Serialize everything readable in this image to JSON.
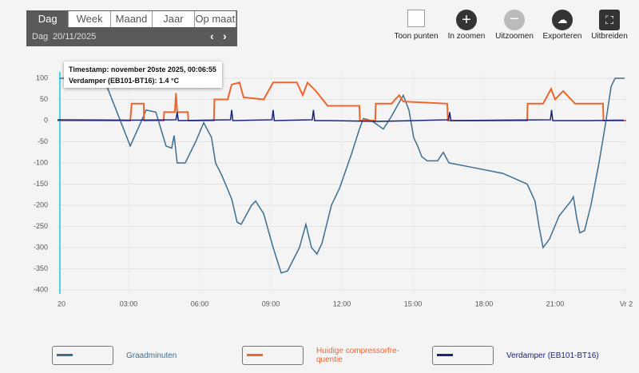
{
  "toolbar": {
    "tabs": [
      "Dag",
      "Week",
      "Maand",
      "Jaar",
      "Op maat"
    ],
    "period": "Dag",
    "date": "20/11/2025"
  },
  "actions": [
    "Toon punten",
    "In zoomen",
    "Uitzoomen",
    "Exporteren",
    "Uitbreiden"
  ],
  "tooltip": {
    "timestamp": "Timestamp: november 20ste 2025, 00:06:55",
    "value": "Verdamper (EB101-BT16): 1.4 °C"
  },
  "chart_data": {
    "type": "line",
    "xlim": [
      0,
      24
    ],
    "ylim": [
      -400,
      100
    ],
    "yticks": [
      -400,
      -350,
      -300,
      -250,
      -200,
      -150,
      -100,
      -50,
      0,
      50,
      100
    ],
    "xticks": [
      {
        "value": 0,
        "label": "20"
      },
      {
        "value": 3,
        "label": "03:00"
      },
      {
        "value": 6,
        "label": "06:00"
      },
      {
        "value": 9,
        "label": "09:00"
      },
      {
        "value": 12,
        "label": "12:00"
      },
      {
        "value": 15,
        "label": "15:00"
      },
      {
        "value": 18,
        "label": "18:00"
      },
      {
        "value": 21,
        "label": "21:00"
      },
      {
        "value": 24,
        "label": "Vr 2"
      }
    ],
    "grid": true,
    "series": [
      {
        "name": "Graadminuten",
        "color": "#3d6e8f",
        "x": [
          0.1,
          1.95,
          3.07,
          3.47,
          3.74,
          4.15,
          4.58,
          4.82,
          4.92,
          5.05,
          5.39,
          5.83,
          6.17,
          6.5,
          6.67,
          6.94,
          7.35,
          7.58,
          7.75,
          8.19,
          8.36,
          8.7,
          9.1,
          9.44,
          9.71,
          10.21,
          10.48,
          10.72,
          10.95,
          11.16,
          11.56,
          11.9,
          12.4,
          12.74,
          12.91,
          13.25,
          13.75,
          14.09,
          14.59,
          14.83,
          15.03,
          15.2,
          15.37,
          15.6,
          16.04,
          16.28,
          16.52,
          17.46,
          18.81,
          19.82,
          20.15,
          20.32,
          20.49,
          20.76,
          21.17,
          21.67,
          21.77,
          21.91,
          22.04,
          22.24,
          22.51,
          22.85,
          23.12,
          23.36,
          23.53,
          23.93
        ],
        "values": [
          100,
          100,
          -60,
          -10,
          25,
          20,
          -60,
          -65,
          -35,
          -100,
          -100,
          -50,
          -5,
          -40,
          -100,
          -130,
          -185,
          -240,
          -245,
          -200,
          -190,
          -220,
          -300,
          -360,
          -355,
          -300,
          -245,
          -300,
          -315,
          -290,
          -200,
          -160,
          -80,
          -20,
          5,
          0,
          -20,
          10,
          60,
          25,
          -40,
          -60,
          -85,
          -95,
          -95,
          -75,
          -100,
          -110,
          -125,
          -150,
          -190,
          -250,
          -300,
          -280,
          -225,
          -190,
          -180,
          -230,
          -265,
          -260,
          -200,
          -100,
          -10,
          80,
          100,
          100
        ]
      },
      {
        "name": "Huidige compressorfre-quentie",
        "color": "#f0642d",
        "x": [
          0,
          3.07,
          3.13,
          3.64,
          3.65,
          4.48,
          4.5,
          4.95,
          5.0,
          5.05,
          5.5,
          5.52,
          6.6,
          6.62,
          7.18,
          7.35,
          7.68,
          7.85,
          8.7,
          9.1,
          10.1,
          10.35,
          10.55,
          10.9,
          11.4,
          12.74,
          12.76,
          13.41,
          13.43,
          14.1,
          14.25,
          14.42,
          14.59,
          16.45,
          16.47,
          19.82,
          19.84,
          20.49,
          20.83,
          21.0,
          21.34,
          21.84,
          23.02,
          23.04,
          24
        ],
        "values": [
          0,
          0,
          40,
          40,
          0,
          0,
          20,
          20,
          65,
          20,
          20,
          0,
          0,
          50,
          50,
          85,
          90,
          55,
          50,
          90,
          90,
          60,
          90,
          70,
          35,
          35,
          0,
          0,
          40,
          40,
          50,
          60,
          45,
          40,
          0,
          0,
          40,
          40,
          75,
          50,
          70,
          40,
          40,
          0,
          0
        ]
      },
      {
        "name": "Verdamper (EB101-BT16)",
        "color": "#1a237e",
        "x": [
          0,
          3.07,
          5.0,
          5.05,
          5.1,
          7.3,
          7.35,
          7.4,
          9.05,
          9.1,
          9.15,
          10.75,
          10.8,
          10.85,
          11.5,
          13.5,
          16.5,
          16.55,
          16.6,
          20.8,
          20.85,
          20.9,
          22.5,
          23.5,
          23.9
        ],
        "values": [
          2,
          1,
          2,
          20,
          0,
          2,
          25,
          0,
          2,
          25,
          0,
          2,
          25,
          0,
          0,
          -2,
          2,
          20,
          0,
          2,
          25,
          0,
          0,
          1,
          1
        ]
      }
    ]
  }
}
